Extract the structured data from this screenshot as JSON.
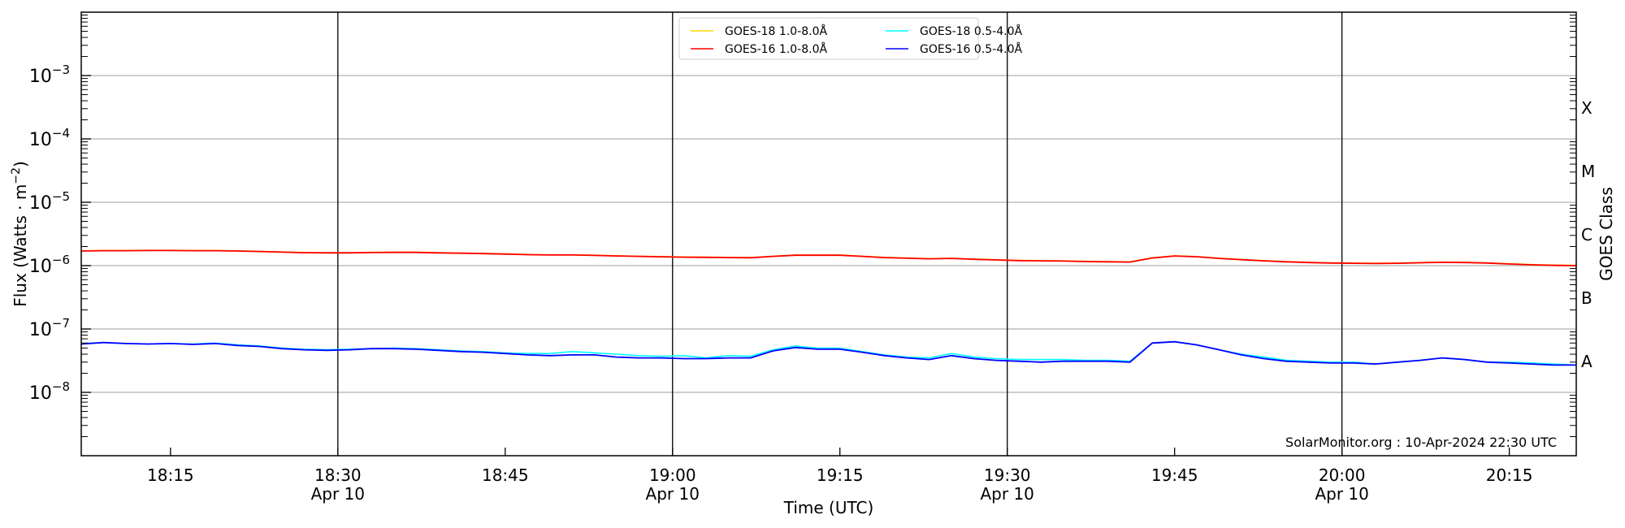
{
  "chart_data": {
    "type": "line",
    "title": "",
    "xlabel": "Time (UTC)",
    "ylabel": "Flux (Watts · m⁻²)",
    "y2label": "GOES Class",
    "yscale": "log",
    "ylim": [
      1e-09,
      0.01
    ],
    "xlim": [
      "18:07",
      "20:21"
    ],
    "x_date": "Apr 10",
    "x_ticks": [
      {
        "t": "18:15",
        "label": "18:15",
        "date": ""
      },
      {
        "t": "18:30",
        "label": "18:30",
        "date": "Apr 10"
      },
      {
        "t": "18:45",
        "label": "18:45",
        "date": ""
      },
      {
        "t": "19:00",
        "label": "19:00",
        "date": "Apr 10"
      },
      {
        "t": "19:15",
        "label": "19:15",
        "date": ""
      },
      {
        "t": "19:30",
        "label": "19:30",
        "date": "Apr 10"
      },
      {
        "t": "19:45",
        "label": "19:45",
        "date": ""
      },
      {
        "t": "20:00",
        "label": "20:00",
        "date": "Apr 10"
      },
      {
        "t": "20:15",
        "label": "20:15",
        "date": ""
      }
    ],
    "y_ticks": [
      {
        "exp": -3,
        "label": "10",
        "sup": "−3"
      },
      {
        "exp": -4,
        "label": "10",
        "sup": "−4"
      },
      {
        "exp": -5,
        "label": "10",
        "sup": "−5"
      },
      {
        "exp": -6,
        "label": "10",
        "sup": "−6"
      },
      {
        "exp": -7,
        "label": "10",
        "sup": "−7"
      },
      {
        "exp": -8,
        "label": "10",
        "sup": "−8"
      }
    ],
    "goes_classes": [
      {
        "label": "X",
        "exp": -3.5
      },
      {
        "label": "M",
        "exp": -4.5
      },
      {
        "label": "C",
        "exp": -5.5
      },
      {
        "label": "B",
        "exp": -6.5
      },
      {
        "label": "A",
        "exp": -7.5
      }
    ],
    "vertical_lines": [
      "18:30",
      "19:00",
      "19:30",
      "20:00"
    ],
    "grid": "horizontal at decades",
    "legend_position": "top-center",
    "annotation": "SolarMonitor.org : 10-Apr-2024 22:30 UTC",
    "x": [
      "18:07",
      "18:09",
      "18:11",
      "18:13",
      "18:15",
      "18:17",
      "18:19",
      "18:21",
      "18:23",
      "18:25",
      "18:27",
      "18:29",
      "18:31",
      "18:33",
      "18:35",
      "18:37",
      "18:39",
      "18:41",
      "18:43",
      "18:45",
      "18:47",
      "18:49",
      "18:51",
      "18:53",
      "18:55",
      "18:57",
      "18:59",
      "19:01",
      "19:03",
      "19:05",
      "19:07",
      "19:09",
      "19:11",
      "19:13",
      "19:15",
      "19:17",
      "19:19",
      "19:21",
      "19:23",
      "19:25",
      "19:27",
      "19:29",
      "19:31",
      "19:33",
      "19:35",
      "19:37",
      "19:39",
      "19:41",
      "19:43",
      "19:45",
      "19:47",
      "19:49",
      "19:51",
      "19:53",
      "19:55",
      "19:57",
      "19:59",
      "20:01",
      "20:03",
      "20:05",
      "20:07",
      "20:09",
      "20:11",
      "20:13",
      "20:15",
      "20:17",
      "20:19",
      "20:21"
    ],
    "series": [
      {
        "name": "GOES-18 1.0-8.0Å",
        "color": "#ffd700",
        "unit_scale": 1e-06,
        "values": [
          1.71,
          1.73,
          1.73,
          1.74,
          1.74,
          1.73,
          1.73,
          1.71,
          1.68,
          1.64,
          1.61,
          1.6,
          1.6,
          1.62,
          1.63,
          1.63,
          1.6,
          1.58,
          1.56,
          1.53,
          1.5,
          1.48,
          1.48,
          1.46,
          1.43,
          1.41,
          1.39,
          1.37,
          1.36,
          1.35,
          1.34,
          1.41,
          1.47,
          1.47,
          1.47,
          1.41,
          1.35,
          1.32,
          1.29,
          1.31,
          1.27,
          1.24,
          1.21,
          1.2,
          1.19,
          1.17,
          1.16,
          1.15,
          1.33,
          1.43,
          1.39,
          1.31,
          1.25,
          1.2,
          1.16,
          1.13,
          1.11,
          1.1,
          1.09,
          1.1,
          1.12,
          1.14,
          1.13,
          1.11,
          1.07,
          1.04,
          1.02,
          1.01
        ]
      },
      {
        "name": "GOES-16 1.0-8.0Å",
        "color": "#ff0000",
        "unit_scale": 1e-06,
        "values": [
          1.7,
          1.72,
          1.72,
          1.73,
          1.73,
          1.72,
          1.72,
          1.7,
          1.67,
          1.63,
          1.6,
          1.59,
          1.59,
          1.61,
          1.62,
          1.62,
          1.59,
          1.57,
          1.55,
          1.52,
          1.49,
          1.47,
          1.47,
          1.45,
          1.42,
          1.4,
          1.38,
          1.36,
          1.35,
          1.34,
          1.33,
          1.4,
          1.46,
          1.46,
          1.46,
          1.4,
          1.34,
          1.31,
          1.28,
          1.3,
          1.26,
          1.23,
          1.2,
          1.19,
          1.18,
          1.16,
          1.15,
          1.14,
          1.32,
          1.42,
          1.38,
          1.3,
          1.24,
          1.19,
          1.15,
          1.12,
          1.1,
          1.09,
          1.08,
          1.09,
          1.11,
          1.13,
          1.12,
          1.1,
          1.06,
          1.03,
          1.01,
          1.0
        ]
      },
      {
        "name": "GOES-18 0.5-4.0Å",
        "color": "#00ffff",
        "unit_scale": 1e-08,
        "values": [
          5.9,
          6.1,
          5.9,
          5.8,
          5.9,
          5.8,
          6.0,
          5.6,
          5.4,
          5.0,
          4.8,
          4.7,
          4.8,
          4.9,
          5.0,
          4.9,
          4.7,
          4.5,
          4.4,
          4.2,
          4.1,
          4.1,
          4.4,
          4.2,
          4.0,
          3.8,
          3.7,
          3.8,
          3.5,
          3.8,
          3.7,
          4.7,
          5.4,
          5.0,
          5.0,
          4.4,
          3.9,
          3.6,
          3.5,
          4.1,
          3.6,
          3.4,
          3.3,
          3.3,
          3.3,
          3.2,
          3.2,
          3.1,
          6.0,
          6.3,
          5.6,
          4.7,
          4.0,
          3.6,
          3.2,
          3.1,
          3.0,
          3.0,
          2.8,
          3.0,
          3.2,
          3.5,
          3.3,
          3.0,
          3.0,
          2.9,
          2.8,
          2.7
        ]
      },
      {
        "name": "GOES-16 0.5-4.0Å",
        "color": "#0000ff",
        "unit_scale": 1e-08,
        "values": [
          5.8,
          6.1,
          5.9,
          5.8,
          5.9,
          5.7,
          5.9,
          5.5,
          5.3,
          4.9,
          4.7,
          4.6,
          4.7,
          4.9,
          4.9,
          4.8,
          4.6,
          4.4,
          4.3,
          4.1,
          3.9,
          3.8,
          3.9,
          3.9,
          3.6,
          3.5,
          3.5,
          3.4,
          3.4,
          3.5,
          3.5,
          4.5,
          5.1,
          4.8,
          4.8,
          4.3,
          3.8,
          3.5,
          3.3,
          3.8,
          3.4,
          3.2,
          3.1,
          3.0,
          3.1,
          3.1,
          3.1,
          3.0,
          6.0,
          6.3,
          5.6,
          4.7,
          3.9,
          3.4,
          3.1,
          3.0,
          2.9,
          2.9,
          2.8,
          3.0,
          3.2,
          3.5,
          3.3,
          3.0,
          2.9,
          2.8,
          2.7,
          2.7
        ]
      }
    ]
  }
}
